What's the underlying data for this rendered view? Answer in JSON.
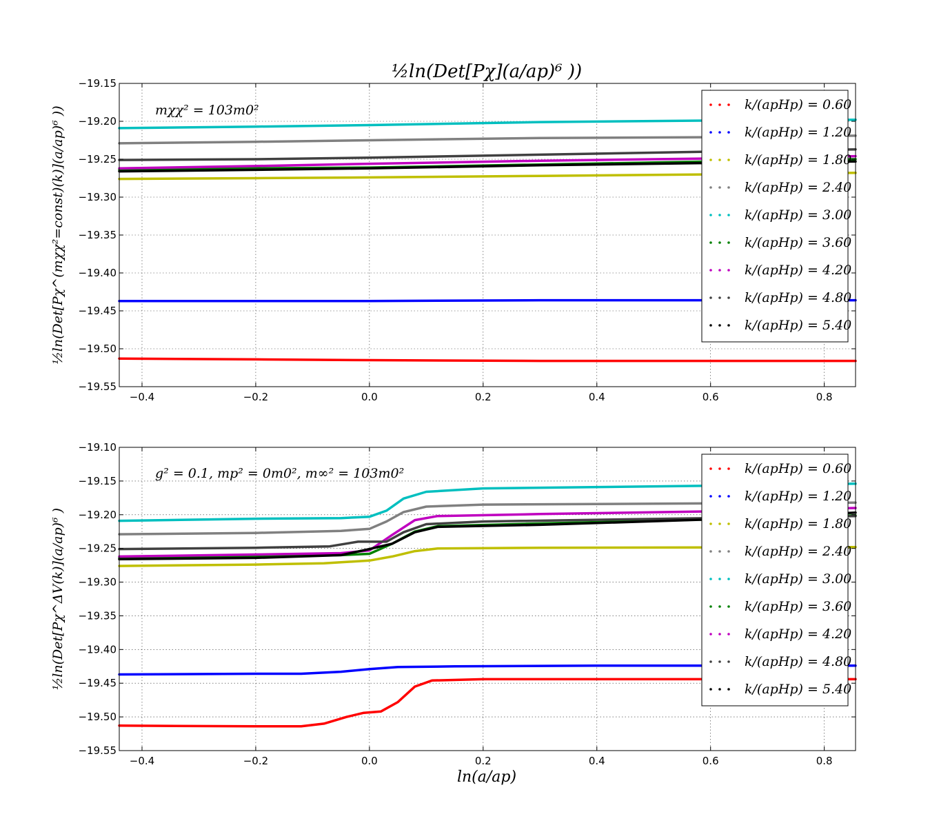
{
  "figure_title": "½ln(Det[Pχ](a/ap)⁶ ))",
  "xlabel": "ln(a/ap)",
  "chart_data": [
    {
      "type": "line",
      "title": "½ln(Det[Pχ](a/ap)⁶ ))",
      "ylabel": "½ln(Det[Pχ^(mχχ²=const)(k)](a/ap)⁶ ))",
      "annotation": "mχχ² = 103m0²",
      "xlim": [
        -0.44,
        0.855
      ],
      "ylim": [
        -19.55,
        -19.15
      ],
      "xticks": [
        "−0.4",
        "−0.2",
        "0.0",
        "0.2",
        "0.4",
        "0.6",
        "0.8"
      ],
      "yticks": [
        "−19.15",
        "−19.20",
        "−19.25",
        "−19.30",
        "−19.35",
        "−19.40",
        "−19.45",
        "−19.50",
        "−19.55"
      ],
      "grid": true,
      "legend_position": "top-right",
      "series": [
        {
          "name": "k/(apHp) = 0.60",
          "color": "#ff0000",
          "x": [
            -0.44,
            -0.2,
            0.0,
            0.3,
            0.6,
            0.855
          ],
          "y": [
            -19.513,
            -19.514,
            -19.515,
            -19.516,
            -19.516,
            -19.516
          ]
        },
        {
          "name": "k/(apHp) = 1.20",
          "color": "#0000ff",
          "x": [
            -0.44,
            -0.2,
            0.0,
            0.3,
            0.6,
            0.855
          ],
          "y": [
            -19.437,
            -19.437,
            -19.437,
            -19.436,
            -19.436,
            -19.436
          ]
        },
        {
          "name": "k/(apHp) = 1.80",
          "color": "#bfbf00",
          "x": [
            -0.44,
            -0.2,
            0.0,
            0.3,
            0.6,
            0.855
          ],
          "y": [
            -19.276,
            -19.275,
            -19.274,
            -19.272,
            -19.27,
            -19.268
          ]
        },
        {
          "name": "k/(apHp) = 2.40",
          "color": "#808080",
          "x": [
            -0.44,
            -0.2,
            0.0,
            0.3,
            0.6,
            0.855
          ],
          "y": [
            -19.229,
            -19.227,
            -19.225,
            -19.222,
            -19.221,
            -19.219
          ]
        },
        {
          "name": "k/(apHp) = 3.00",
          "color": "#00bfbf",
          "x": [
            -0.44,
            -0.2,
            0.0,
            0.3,
            0.6,
            0.855
          ],
          "y": [
            -19.209,
            -19.207,
            -19.205,
            -19.201,
            -19.199,
            -19.198
          ]
        },
        {
          "name": "k/(apHp) = 3.60",
          "color": "#008000",
          "x": [
            -0.44,
            -0.2,
            0.0,
            0.3,
            0.6,
            0.855
          ],
          "y": [
            -19.264,
            -19.262,
            -19.261,
            -19.257,
            -19.253,
            -19.25
          ]
        },
        {
          "name": "k/(apHp) = 4.20",
          "color": "#bf00bf",
          "x": [
            -0.44,
            -0.2,
            0.0,
            0.3,
            0.6,
            0.855
          ],
          "y": [
            -19.262,
            -19.259,
            -19.256,
            -19.252,
            -19.249,
            -19.246
          ]
        },
        {
          "name": "k/(apHp) = 4.80",
          "color": "#404040",
          "x": [
            -0.44,
            -0.2,
            0.0,
            0.3,
            0.6,
            0.855
          ],
          "y": [
            -19.251,
            -19.25,
            -19.248,
            -19.244,
            -19.24,
            -19.237
          ]
        },
        {
          "name": "k/(apHp) = 5.40",
          "color": "#000000",
          "x": [
            -0.44,
            -0.2,
            0.0,
            0.3,
            0.6,
            0.855
          ],
          "y": [
            -19.266,
            -19.264,
            -19.262,
            -19.258,
            -19.255,
            -19.253
          ]
        }
      ]
    },
    {
      "type": "line",
      "ylabel": "½ln(Det[Pχ^ΔV(k)](a/ap)⁶ )",
      "annotation": "g² = 0.1, mp² = 0m0², m∞² = 103m0²",
      "xlabel": "ln(a/ap)",
      "xlim": [
        -0.44,
        0.855
      ],
      "ylim": [
        -19.55,
        -19.1
      ],
      "xticks": [
        "−0.4",
        "−0.2",
        "0.0",
        "0.2",
        "0.4",
        "0.6",
        "0.8"
      ],
      "yticks": [
        "−19.10",
        "−19.15",
        "−19.20",
        "−19.25",
        "−19.30",
        "−19.35",
        "−19.40",
        "−19.45",
        "−19.50",
        "−19.55"
      ],
      "grid": true,
      "legend_position": "top-right",
      "series": [
        {
          "name": "k/(apHp) = 0.60",
          "color": "#ff0000",
          "x": [
            -0.44,
            -0.2,
            -0.12,
            -0.08,
            -0.04,
            -0.01,
            0.02,
            0.05,
            0.08,
            0.11,
            0.2,
            0.6,
            0.855
          ],
          "y": [
            -19.513,
            -19.514,
            -19.514,
            -19.51,
            -19.5,
            -19.494,
            -19.492,
            -19.478,
            -19.455,
            -19.446,
            -19.444,
            -19.444,
            -19.444
          ]
        },
        {
          "name": "k/(apHp) = 1.20",
          "color": "#0000ff",
          "x": [
            -0.44,
            -0.2,
            -0.12,
            -0.05,
            0.0,
            0.05,
            0.15,
            0.4,
            0.855
          ],
          "y": [
            -19.437,
            -19.436,
            -19.436,
            -19.433,
            -19.429,
            -19.426,
            -19.425,
            -19.424,
            -19.424
          ]
        },
        {
          "name": "k/(apHp) = 1.80",
          "color": "#bfbf00",
          "x": [
            -0.44,
            -0.2,
            -0.08,
            0.0,
            0.04,
            0.08,
            0.12,
            0.3,
            0.855
          ],
          "y": [
            -19.276,
            -19.274,
            -19.272,
            -19.268,
            -19.262,
            -19.254,
            -19.25,
            -19.249,
            -19.248
          ]
        },
        {
          "name": "k/(apHp) = 2.40",
          "color": "#808080",
          "x": [
            -0.44,
            -0.2,
            -0.05,
            0.0,
            0.03,
            0.06,
            0.1,
            0.2,
            0.855
          ],
          "y": [
            -19.229,
            -19.227,
            -19.224,
            -19.221,
            -19.21,
            -19.196,
            -19.188,
            -19.185,
            -19.182
          ]
        },
        {
          "name": "k/(apHp) = 3.00",
          "color": "#00bfbf",
          "x": [
            -0.44,
            -0.2,
            -0.05,
            0.0,
            0.03,
            0.06,
            0.1,
            0.2,
            0.6,
            0.855
          ],
          "y": [
            -19.209,
            -19.206,
            -19.205,
            -19.203,
            -19.194,
            -19.176,
            -19.166,
            -19.161,
            -19.157,
            -19.154
          ]
        },
        {
          "name": "k/(apHp) = 3.60",
          "color": "#008000",
          "x": [
            -0.44,
            -0.2,
            -0.05,
            0.0,
            0.04,
            0.08,
            0.12,
            0.3,
            0.6,
            0.855
          ],
          "y": [
            -19.264,
            -19.262,
            -19.26,
            -19.258,
            -19.243,
            -19.225,
            -19.217,
            -19.213,
            -19.207,
            -19.201
          ]
        },
        {
          "name": "k/(apHp) = 4.20",
          "color": "#bf00bf",
          "x": [
            -0.44,
            -0.2,
            -0.05,
            0.0,
            0.04,
            0.08,
            0.12,
            0.3,
            0.6,
            0.855
          ],
          "y": [
            -19.262,
            -19.259,
            -19.257,
            -19.253,
            -19.23,
            -19.208,
            -19.202,
            -19.199,
            -19.195,
            -19.19
          ]
        },
        {
          "name": "k/(apHp) = 4.80",
          "color": "#404040",
          "x": [
            -0.44,
            -0.2,
            -0.07,
            -0.02,
            0.03,
            0.06,
            0.1,
            0.2,
            0.6,
            0.855
          ],
          "y": [
            -19.251,
            -19.249,
            -19.247,
            -19.24,
            -19.24,
            -19.226,
            -19.214,
            -19.21,
            -19.205,
            -19.202
          ]
        },
        {
          "name": "k/(apHp) = 5.40",
          "color": "#000000",
          "x": [
            -0.44,
            -0.2,
            -0.05,
            0.0,
            0.04,
            0.08,
            0.12,
            0.3,
            0.6,
            0.855
          ],
          "y": [
            -19.266,
            -19.264,
            -19.26,
            -19.251,
            -19.243,
            -19.226,
            -19.218,
            -19.215,
            -19.207,
            -19.197
          ]
        }
      ]
    }
  ]
}
